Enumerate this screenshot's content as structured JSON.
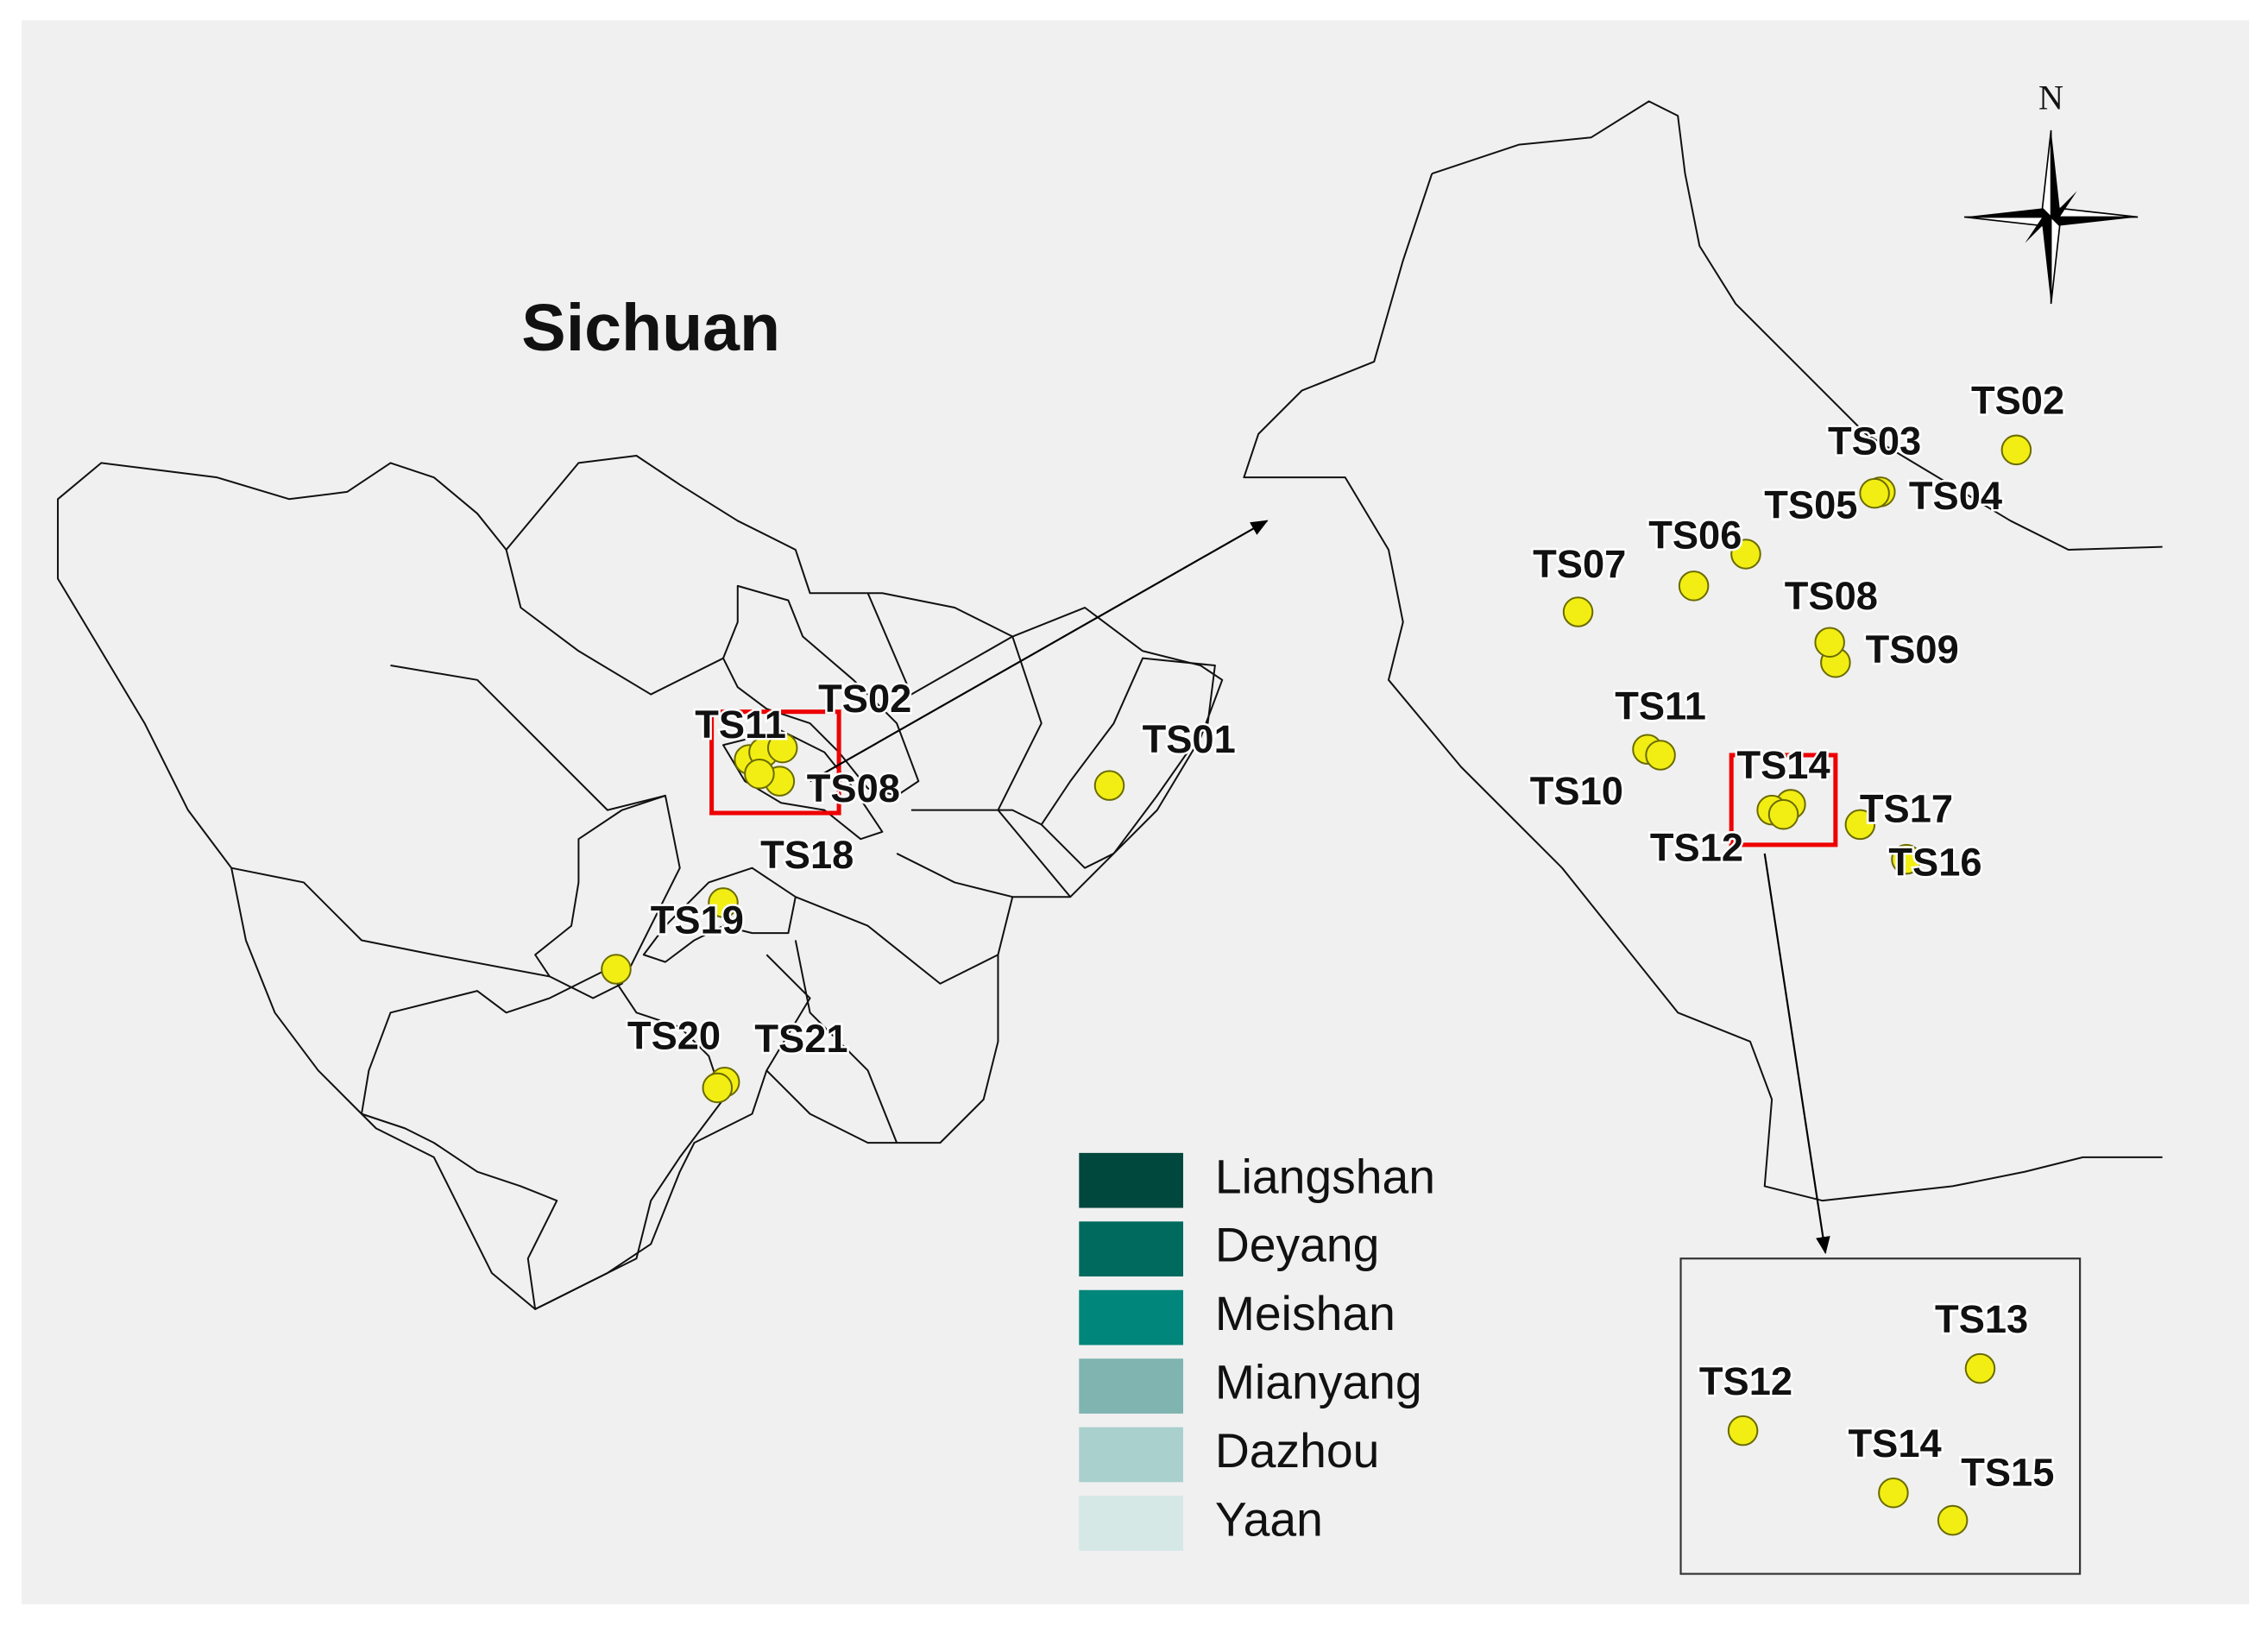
{
  "map": {
    "title": "Sichuan",
    "north": "N",
    "legend": [
      {
        "name": "Liangshan",
        "color": "#00473d"
      },
      {
        "name": "Deyang",
        "color": "#016a5e"
      },
      {
        "name": "Meishan",
        "color": "#00867a"
      },
      {
        "name": "Mianyang",
        "color": "#7fb4b0"
      },
      {
        "name": "Dazhou",
        "color": "#a9d0cc"
      },
      {
        "name": "Yaan",
        "color": "#d5e8e6"
      }
    ],
    "main_sites": [
      "TS11",
      "TS02",
      "TS08",
      "TS01",
      "TS18",
      "TS19",
      "TS20",
      "TS21"
    ],
    "inset_sites": [
      "TS02",
      "TS03",
      "TS04",
      "TS05",
      "TS06",
      "TS07",
      "TS08",
      "TS09",
      "TS11",
      "TS10",
      "TS14",
      "TS17",
      "TS12",
      "TS16"
    ],
    "detail_sites": [
      "TS13",
      "TS12",
      "TS14",
      "TS15"
    ]
  }
}
